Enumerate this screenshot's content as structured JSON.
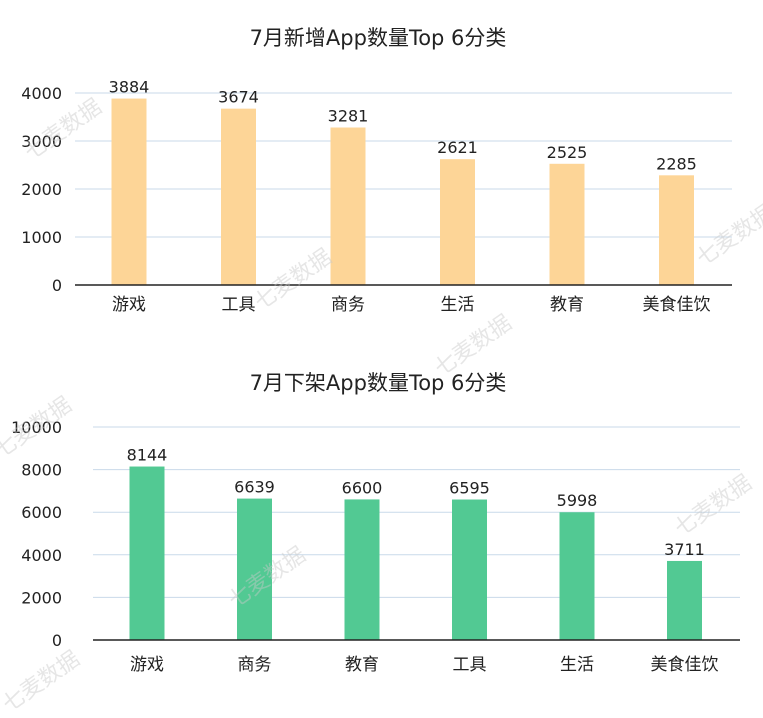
{
  "watermark": "七麦数据",
  "chart_data": [
    {
      "type": "bar",
      "title": "7月新增App数量Top 6分类",
      "categories": [
        "游戏",
        "工具",
        "商务",
        "生活",
        "教育",
        "美食佳饮"
      ],
      "values": [
        3884,
        3674,
        3281,
        2621,
        2525,
        2285
      ],
      "yticks": [
        0,
        1000,
        2000,
        3000,
        4000
      ],
      "ylim": [
        0,
        4000
      ],
      "grid": true,
      "bar_color": "#FDD597"
    },
    {
      "type": "bar",
      "title": "7月下架App数量Top 6分类",
      "categories": [
        "游戏",
        "商务",
        "教育",
        "工具",
        "生活",
        "美食佳饮"
      ],
      "values": [
        8144,
        6639,
        6600,
        6595,
        5998,
        3711
      ],
      "yticks": [
        0,
        2000,
        4000,
        6000,
        8000,
        10000
      ],
      "ylim": [
        0,
        10000
      ],
      "grid": true,
      "bar_color": "#52C993"
    }
  ]
}
